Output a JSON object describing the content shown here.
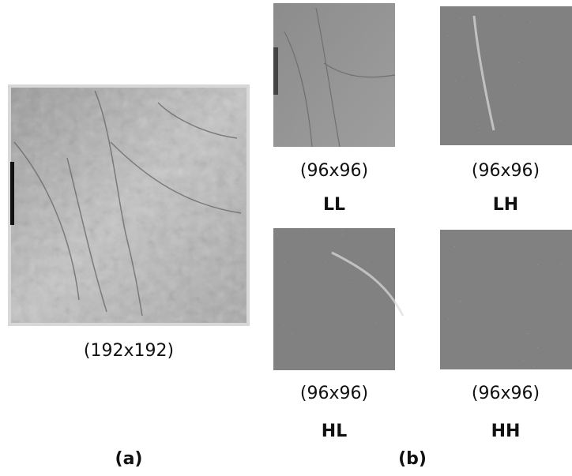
{
  "figure": {
    "a": {
      "caption": "(192x192)",
      "label": "(a)"
    },
    "b": {
      "label": "(b)",
      "items": [
        {
          "size": "(96x96)",
          "name": "LL"
        },
        {
          "size": "(96x96)",
          "name": "LH"
        },
        {
          "size": "(96x96)",
          "name": "HL"
        },
        {
          "size": "(96x96)",
          "name": "HH"
        }
      ]
    }
  }
}
